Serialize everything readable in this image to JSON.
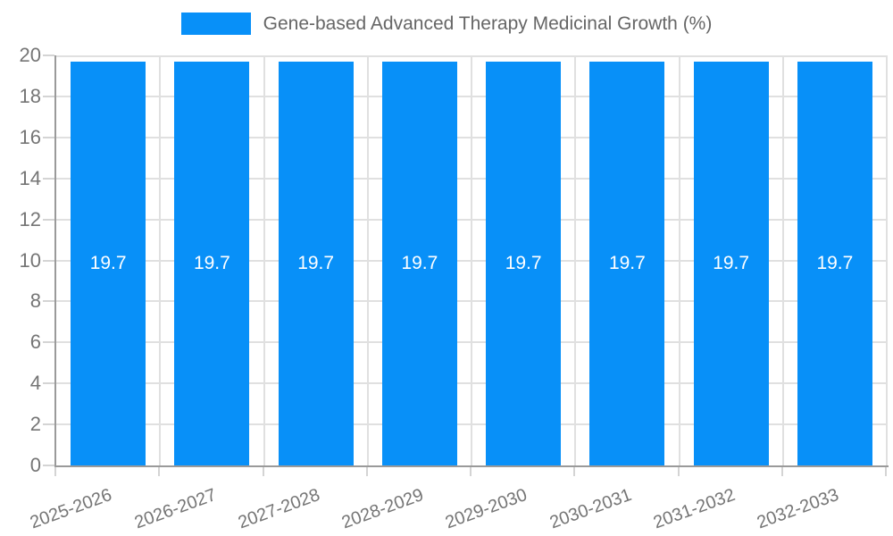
{
  "chart_data": {
    "type": "bar",
    "title": "Gene-based Advanced Therapy Medicinal Growth (%)",
    "legend": {
      "position": "top",
      "label": "Gene-based Advanced Therapy Medicinal Growth (%)"
    },
    "categories": [
      "2025-2026",
      "2026-2027",
      "2027-2028",
      "2028-2029",
      "2029-2030",
      "2030-2031",
      "2031-2032",
      "2032-2033"
    ],
    "values": [
      19.7,
      19.7,
      19.7,
      19.7,
      19.7,
      19.7,
      19.7,
      19.7
    ],
    "data_labels": [
      "19.7",
      "19.7",
      "19.7",
      "19.7",
      "19.7",
      "19.7",
      "19.7",
      "19.7"
    ],
    "xlabel": "",
    "ylabel": "",
    "ylim": [
      0,
      20
    ],
    "yticks": [
      0,
      2,
      4,
      6,
      8,
      10,
      12,
      14,
      16,
      18,
      20
    ],
    "grid": true,
    "colors": {
      "bar": "#0890f8",
      "bar_label": "#ffffff",
      "grid": "#e0e0e0",
      "tick_mark": "#d4d4d4",
      "axis_line": "#9a9a9a",
      "tick_label": "#757575",
      "legend_text": "#666666",
      "background": "#ffffff"
    }
  }
}
